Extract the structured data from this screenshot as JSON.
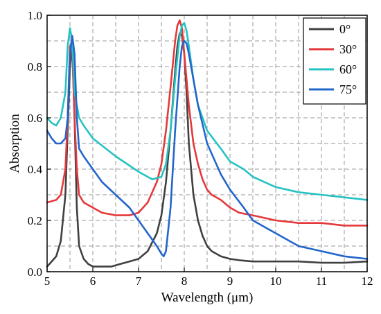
{
  "chart_data": {
    "type": "line",
    "xlabel": "Wavelength (μm)",
    "ylabel": "Absorption",
    "xlim": [
      5,
      12
    ],
    "ylim": [
      0,
      1.0
    ],
    "xticks": [
      5,
      6,
      7,
      8,
      9,
      10,
      11,
      12
    ],
    "yticks": [
      0.0,
      0.2,
      0.4,
      0.6,
      0.8,
      1.0
    ],
    "grid": true,
    "legend_position": "top-right",
    "series": [
      {
        "name": "0°",
        "color": "#404040",
        "x": [
          5.0,
          5.1,
          5.2,
          5.3,
          5.4,
          5.45,
          5.5,
          5.55,
          5.6,
          5.65,
          5.7,
          5.8,
          5.9,
          6.0,
          6.2,
          6.4,
          6.6,
          6.8,
          7.0,
          7.2,
          7.4,
          7.5,
          7.6,
          7.7,
          7.8,
          7.85,
          7.9,
          7.95,
          8.0,
          8.05,
          8.1,
          8.2,
          8.3,
          8.4,
          8.5,
          8.6,
          8.8,
          9.0,
          9.2,
          9.5,
          10.0,
          10.5,
          11.0,
          11.5,
          12.0
        ],
        "y": [
          0.02,
          0.04,
          0.06,
          0.12,
          0.3,
          0.55,
          0.8,
          0.88,
          0.6,
          0.25,
          0.1,
          0.05,
          0.03,
          0.02,
          0.02,
          0.02,
          0.03,
          0.04,
          0.05,
          0.08,
          0.15,
          0.22,
          0.35,
          0.55,
          0.78,
          0.88,
          0.93,
          0.92,
          0.85,
          0.7,
          0.5,
          0.3,
          0.2,
          0.14,
          0.1,
          0.08,
          0.06,
          0.05,
          0.045,
          0.04,
          0.04,
          0.04,
          0.035,
          0.035,
          0.04
        ]
      },
      {
        "name": "30°",
        "color": "#e5383b",
        "x": [
          5.0,
          5.2,
          5.3,
          5.4,
          5.45,
          5.5,
          5.55,
          5.6,
          5.65,
          5.7,
          5.8,
          6.0,
          6.2,
          6.5,
          6.8,
          7.0,
          7.2,
          7.4,
          7.5,
          7.6,
          7.7,
          7.8,
          7.85,
          7.9,
          7.95,
          8.0,
          8.1,
          8.2,
          8.3,
          8.4,
          8.5,
          8.6,
          8.8,
          9.0,
          9.2,
          9.5,
          10.0,
          10.5,
          11.0,
          11.5,
          12.0
        ],
        "y": [
          0.27,
          0.28,
          0.3,
          0.4,
          0.6,
          0.88,
          0.86,
          0.6,
          0.4,
          0.3,
          0.27,
          0.25,
          0.23,
          0.22,
          0.22,
          0.23,
          0.27,
          0.35,
          0.42,
          0.55,
          0.72,
          0.9,
          0.96,
          0.98,
          0.95,
          0.85,
          0.65,
          0.5,
          0.42,
          0.36,
          0.32,
          0.3,
          0.28,
          0.25,
          0.23,
          0.22,
          0.2,
          0.19,
          0.19,
          0.18,
          0.18
        ]
      },
      {
        "name": "60°",
        "color": "#25c2c2",
        "x": [
          5.0,
          5.1,
          5.2,
          5.3,
          5.4,
          5.45,
          5.5,
          5.55,
          5.6,
          5.7,
          5.8,
          6.0,
          6.5,
          7.0,
          7.3,
          7.5,
          7.6,
          7.7,
          7.8,
          7.9,
          7.95,
          8.0,
          8.05,
          8.1,
          8.2,
          8.3,
          8.5,
          8.8,
          9.0,
          9.3,
          9.5,
          10.0,
          10.5,
          11.0,
          11.5,
          12.0
        ],
        "y": [
          0.6,
          0.58,
          0.57,
          0.6,
          0.7,
          0.88,
          0.95,
          0.9,
          0.7,
          0.6,
          0.57,
          0.52,
          0.45,
          0.39,
          0.36,
          0.37,
          0.42,
          0.55,
          0.75,
          0.92,
          0.96,
          0.97,
          0.94,
          0.88,
          0.75,
          0.65,
          0.55,
          0.48,
          0.43,
          0.4,
          0.37,
          0.33,
          0.31,
          0.3,
          0.29,
          0.28
        ]
      },
      {
        "name": "75°",
        "color": "#2266cc",
        "x": [
          5.0,
          5.1,
          5.2,
          5.3,
          5.4,
          5.45,
          5.5,
          5.55,
          5.6,
          5.65,
          5.7,
          5.8,
          6.0,
          6.2,
          6.5,
          6.8,
          7.0,
          7.2,
          7.4,
          7.5,
          7.55,
          7.6,
          7.7,
          7.8,
          7.9,
          7.95,
          8.0,
          8.05,
          8.1,
          8.2,
          8.3,
          8.5,
          8.8,
          9.0,
          9.3,
          9.5,
          10.0,
          10.5,
          11.0,
          11.5,
          12.0
        ],
        "y": [
          0.55,
          0.52,
          0.5,
          0.5,
          0.52,
          0.6,
          0.85,
          0.92,
          0.85,
          0.6,
          0.48,
          0.45,
          0.4,
          0.35,
          0.3,
          0.25,
          0.2,
          0.15,
          0.1,
          0.07,
          0.06,
          0.08,
          0.25,
          0.55,
          0.8,
          0.88,
          0.9,
          0.89,
          0.85,
          0.75,
          0.65,
          0.5,
          0.38,
          0.32,
          0.25,
          0.2,
          0.15,
          0.1,
          0.08,
          0.06,
          0.05
        ]
      }
    ]
  }
}
